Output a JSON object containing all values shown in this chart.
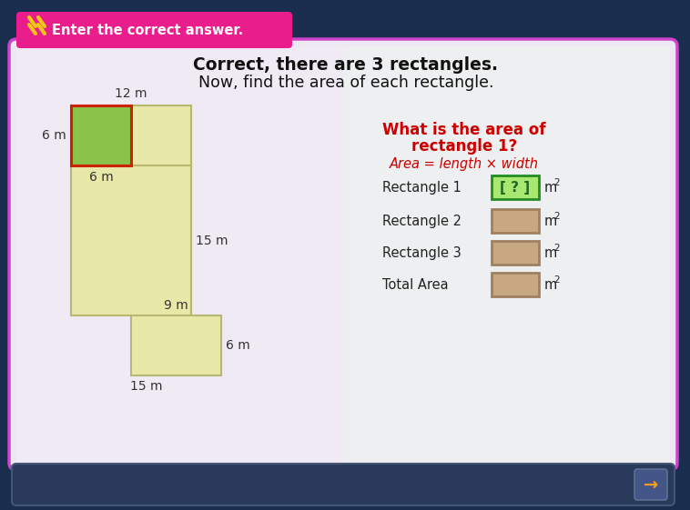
{
  "bg_outer": "#1b2d4f",
  "title1": "Correct, there are 3 rectangles.",
  "title2": "Now, find the area of each rectangle.",
  "header_bar_color": "#e91e8c",
  "header_bar_text": "Enter the correct answer.",
  "header_slash_color": "#f5c518",
  "question_line1": "What is the area of",
  "question_line2": "rectangle 1?",
  "question_color": "#cc0000",
  "formula_text": "Area = length × width",
  "formula_color": "#cc0000",
  "rect1_fill": "#8bc34a",
  "rect1_border": "#cc2200",
  "rect_yellow_fill": "#e8e8a8",
  "rect_yellow_border": "#b8b870",
  "card_fill": "#ede8f2",
  "card_border": "#cc44cc",
  "dim_label_color": "#333333",
  "dim_12m": "12 m",
  "dim_6m_left": "6 m",
  "dim_6m_below": "6 m",
  "dim_15m_mid": "15 m",
  "dim_9m": "9 m",
  "dim_6m_right": "6 m",
  "dim_15m_bot": "15 m",
  "active_box_fill": "#a8e870",
  "active_box_border": "#228B22",
  "inactive_box_fill": "#c8a882",
  "inactive_box_border": "#a08060",
  "row_labels": [
    "Rectangle 1",
    "Rectangle 2",
    "Rectangle 3",
    "Total Area"
  ],
  "unit_label": "m2",
  "bottom_bar_color": "#2a3a5a",
  "arrow_color": "#f5a020",
  "s": 11
}
